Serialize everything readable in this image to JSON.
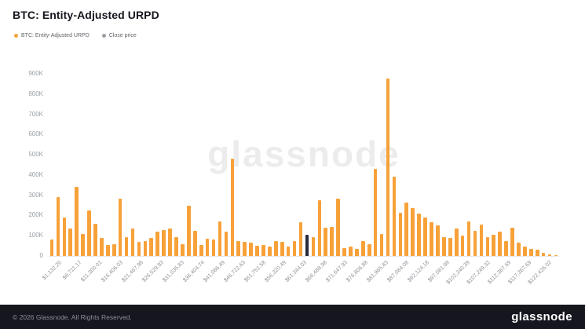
{
  "header": {
    "title": "BTC: Entity-Adjusted URPD"
  },
  "legend": {
    "items": [
      {
        "label": "BTC: Entity-Adjusted URPD",
        "color": "#F7A139"
      },
      {
        "label": "Close price",
        "color": "#9aa0a6"
      }
    ]
  },
  "watermark": {
    "text": "glassnode"
  },
  "footer": {
    "copyright": "© 2026 Glassnode. All Rights Reserved.",
    "logo": "glassnode"
  },
  "chart_data": {
    "type": "bar",
    "title": "BTC: Entity-Adjusted URPD",
    "xlabel": "",
    "ylabel": "",
    "unit": "K",
    "ylim": [
      0,
      900
    ],
    "grid": false,
    "legend_position": "top-left",
    "bar_color": "#F7A139",
    "highlight_color": "#262A3B",
    "highlight_index": 41,
    "yticks": [
      {
        "v": 0,
        "label": "0"
      },
      {
        "v": 100,
        "label": "100K"
      },
      {
        "v": 200,
        "label": "200K"
      },
      {
        "v": 300,
        "label": "300K"
      },
      {
        "v": 400,
        "label": "400K"
      },
      {
        "v": 500,
        "label": "500K"
      },
      {
        "v": 600,
        "label": "600K"
      },
      {
        "v": 700,
        "label": "700K"
      },
      {
        "v": 800,
        "label": "800K"
      },
      {
        "v": 900,
        "label": "900K"
      }
    ],
    "x_tick_labels": [
      "$1,132.20",
      "$6,711.17",
      "$11,300.01",
      "$16,406.03",
      "$21,467.98",
      "$26,529.93",
      "$31,035.83",
      "$36,404.74",
      "$41,086.49",
      "$46,722.63",
      "$51,751.58",
      "$56,320.49",
      "$61,344.03",
      "$66,488.98",
      "$71,647.93",
      "$76,806.88",
      "$81,965.83",
      "$87,084.08",
      "$92,124.18",
      "$97,081.98",
      "$102,240.39",
      "$107,249.32",
      "$112,367.69",
      "$117,367.69",
      "$122,426.02"
    ],
    "values": [
      80,
      290,
      190,
      135,
      340,
      110,
      225,
      160,
      90,
      55,
      60,
      285,
      95,
      135,
      70,
      75,
      90,
      120,
      130,
      135,
      95,
      60,
      250,
      125,
      55,
      85,
      80,
      170,
      120,
      480,
      75,
      70,
      65,
      50,
      55,
      45,
      75,
      70,
      45,
      75,
      165,
      105,
      95,
      275,
      140,
      145,
      285,
      40,
      45,
      35,
      75,
      60,
      430,
      110,
      875,
      390,
      215,
      265,
      235,
      210,
      190,
      165,
      150,
      95,
      90,
      135,
      100,
      170,
      125,
      155,
      95,
      105,
      120,
      75,
      140,
      65,
      45,
      35,
      30,
      15,
      8,
      5
    ]
  }
}
